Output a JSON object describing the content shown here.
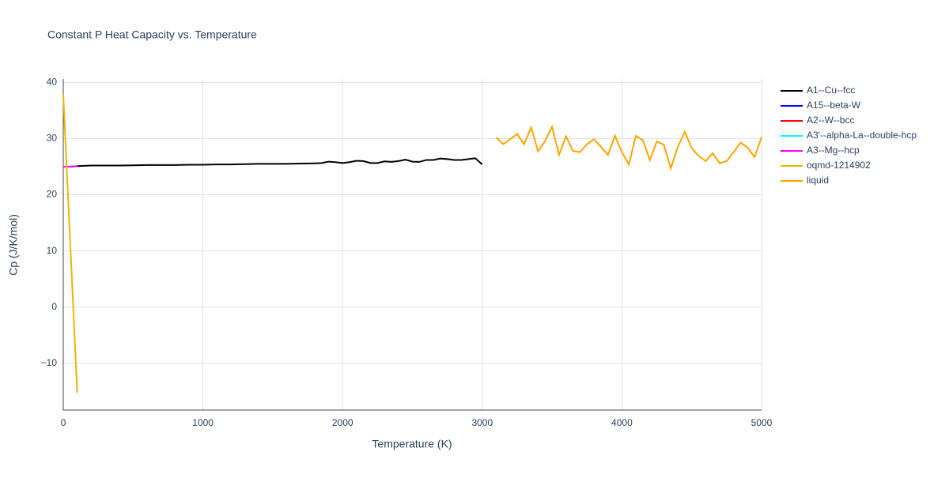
{
  "chart_data": {
    "type": "line",
    "title": "Constant P Heat Capacity vs. Temperature",
    "xlabel": "Temperature (K)",
    "ylabel": "Cp (J/K/mol)",
    "xlim": [
      0,
      5000
    ],
    "ylim": [
      -18.3,
      40.6
    ],
    "xticks": [
      0,
      1000,
      2000,
      3000,
      4000,
      5000
    ],
    "yticks": [
      {
        "value": -10,
        "label": "−10"
      },
      0,
      10,
      20,
      30,
      40
    ],
    "grid": true,
    "legend": "right",
    "series": [
      {
        "name": "A1--Cu--fcc",
        "color": "#000000",
        "x": [
          100,
          200,
          300,
          400,
          500,
          600,
          700,
          800,
          900,
          1000,
          1100,
          1200,
          1300,
          1400,
          1500,
          1600,
          1700,
          1800,
          1850,
          1900,
          1950,
          2000,
          2050,
          2100,
          2150,
          2200,
          2250,
          2300,
          2350,
          2400,
          2450,
          2500,
          2550,
          2600,
          2650,
          2700,
          2750,
          2800,
          2850,
          2900,
          2950,
          3000
        ],
        "values": [
          25.1,
          25.2,
          25.2,
          25.2,
          25.25,
          25.3,
          25.3,
          25.3,
          25.35,
          25.35,
          25.4,
          25.4,
          25.45,
          25.5,
          25.5,
          25.5,
          25.55,
          25.6,
          25.65,
          25.9,
          25.8,
          25.65,
          25.8,
          26.05,
          26.0,
          25.65,
          25.65,
          25.95,
          25.85,
          26.0,
          26.25,
          25.9,
          25.85,
          26.2,
          26.2,
          26.45,
          26.35,
          26.2,
          26.2,
          26.35,
          26.5,
          25.4
        ]
      },
      {
        "name": "A15--beta-W",
        "color": "#0000ff",
        "x": [
          0,
          50,
          100
        ],
        "values": [
          25.0,
          25.0,
          25.1
        ]
      },
      {
        "name": "A2--W--bcc",
        "color": "#ff0000",
        "x": [
          0,
          50,
          100
        ],
        "values": [
          25.0,
          25.0,
          25.1
        ]
      },
      {
        "name": "A3'--alpha-La--double-hcp",
        "color": "#00ffff",
        "x": [
          0,
          50,
          100
        ],
        "values": [
          25.0,
          25.0,
          25.1
        ]
      },
      {
        "name": "A3--Mg--hcp",
        "color": "#ff00ff",
        "x": [
          0,
          50,
          100
        ],
        "values": [
          25.0,
          25.0,
          25.1
        ]
      },
      {
        "name": "oqmd-1214902",
        "color": "#e6b800",
        "x": [
          0,
          100
        ],
        "values": [
          37.9,
          -15.2
        ]
      },
      {
        "name": "liquid",
        "color": "#ffa500",
        "x": [
          3100,
          3150,
          3200,
          3250,
          3300,
          3350,
          3400,
          3450,
          3500,
          3550,
          3600,
          3650,
          3700,
          3750,
          3800,
          3850,
          3900,
          3950,
          4000,
          4050,
          4100,
          4150,
          4200,
          4250,
          4300,
          4350,
          4400,
          4450,
          4500,
          4550,
          4600,
          4650,
          4700,
          4750,
          4800,
          4850,
          4900,
          4950,
          5000
        ],
        "values": [
          30.2,
          29.0,
          29.9,
          30.8,
          29.0,
          32.0,
          27.7,
          29.6,
          32.1,
          27.1,
          30.4,
          27.8,
          27.6,
          29.0,
          29.9,
          28.5,
          27.1,
          30.5,
          27.6,
          25.4,
          30.5,
          29.7,
          26.2,
          29.5,
          28.9,
          24.7,
          28.5,
          31.2,
          28.3,
          26.9,
          26.0,
          27.4,
          25.6,
          26.0,
          27.6,
          29.3,
          28.4,
          26.7,
          30.3
        ]
      }
    ]
  }
}
